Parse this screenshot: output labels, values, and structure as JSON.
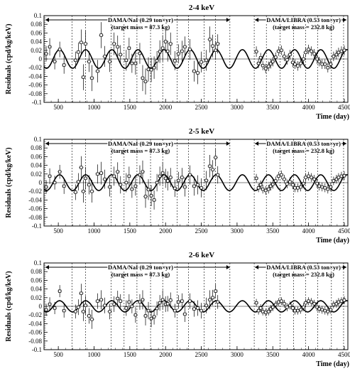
{
  "figure_title": "",
  "chart_data": [
    {
      "type": "scatter",
      "title": "2-4 keV",
      "xlabel": "Time (day)",
      "ylabel": "Residuals (cpd/kg/keV)",
      "xlim": [
        300,
        4550
      ],
      "ylim": [
        -0.1,
        0.1
      ],
      "xticks": [
        500,
        1000,
        1500,
        2000,
        2500,
        3000,
        3500,
        4000,
        4500
      ],
      "xtick_labels": [
        "500",
        "1000",
        "1500",
        "2000",
        "2500",
        "3000",
        "3500",
        "4000",
        "4500"
      ],
      "yticks": [
        -0.1,
        -0.08,
        -0.06,
        -0.04,
        -0.02,
        0,
        0.02,
        0.04,
        0.06,
        0.08,
        0.1
      ],
      "ytick_labels": [
        "-0.1",
        "-0.08",
        "-0.06",
        "-0.04",
        "-0.02",
        "0",
        "0.02",
        "0.04",
        "0.06",
        "0.08",
        "0.1"
      ],
      "grid": false,
      "annotations": {
        "nai_label": "DAMA/NaI (0.29 ton×yr)",
        "nai_mass": "(target mass = 87.3 kg)",
        "libra_label": "DAMA/LIBRA (0.53 ton×yr)",
        "libra_mass": "(target mass = 232.8 kg)"
      },
      "period_boundaries": [
        300,
        690,
        880,
        1240,
        1420,
        1600,
        1790,
        1960,
        2160,
        2320,
        2540,
        2700,
        2900,
        3240,
        3410,
        3600,
        3790,
        3960,
        4130,
        4320,
        4490
      ],
      "fit": {
        "amplitude": 0.0215,
        "period_days": 365.25,
        "phase_day": 152.5
      },
      "series": [
        {
          "x": [
            330,
            380,
            450,
            520,
            580,
            740,
            780,
            820,
            850,
            880,
            930,
            970,
            1050,
            1100,
            1150,
            1220,
            1280,
            1330,
            1370,
            1450,
            1490,
            1530,
            1580,
            1640,
            1680,
            1720,
            1760,
            1800,
            1840,
            1880,
            1920,
            1960,
            2000,
            2030,
            2070,
            2130,
            2180,
            2230,
            2270,
            2340,
            2400,
            2450,
            2500,
            2570,
            2620,
            2660,
            2700,
            2730,
            3270,
            3300,
            3330,
            3360,
            3400,
            3440,
            3470,
            3500,
            3540,
            3580,
            3620,
            3660,
            3700,
            3740,
            3780,
            3810,
            3850,
            3890,
            3930,
            3960,
            4000,
            4040,
            4080,
            4120,
            4150,
            4190,
            4230,
            4270,
            4310,
            4350,
            4390,
            4420,
            4460,
            4500
          ],
          "y": [
            0.012,
            0.028,
            -0.006,
            0.022,
            -0.014,
            -0.003,
            0.016,
            0.038,
            -0.042,
            0.035,
            -0.006,
            -0.044,
            -0.028,
            0.055,
            0.006,
            -0.006,
            0.035,
            0.028,
            0.01,
            -0.003,
            0.025,
            -0.01,
            -0.01,
            0.013,
            -0.044,
            -0.052,
            -0.024,
            -0.025,
            -0.02,
            -0.004,
            0.017,
            0.025,
            0.04,
            0.018,
            0.035,
            -0.004,
            0.012,
            0.018,
            0.028,
            0.022,
            -0.028,
            -0.032,
            -0.007,
            -0.003,
            0.045,
            0.03,
            0.02,
            0.035,
            0.017,
            -0.01,
            0.003,
            -0.015,
            -0.022,
            -0.017,
            -0.011,
            -0.006,
            0.004,
            0.018,
            0.02,
            0.006,
            -0.002,
            0.01,
            -0.008,
            -0.012,
            -0.016,
            -0.01,
            0.0,
            0.015,
            0.022,
            0.018,
            0.012,
            0.0,
            -0.006,
            -0.012,
            -0.012,
            -0.02,
            -0.012,
            0.006,
            0.01,
            0.015,
            0.018,
            0.02
          ],
          "err": [
            0.018,
            0.02,
            0.018,
            0.018,
            0.02,
            0.02,
            0.022,
            0.03,
            0.03,
            0.03,
            0.024,
            0.03,
            0.026,
            0.03,
            0.024,
            0.024,
            0.026,
            0.026,
            0.022,
            0.024,
            0.024,
            0.022,
            0.026,
            0.024,
            0.03,
            0.03,
            0.028,
            0.028,
            0.026,
            0.022,
            0.026,
            0.03,
            0.026,
            0.024,
            0.026,
            0.022,
            0.022,
            0.024,
            0.024,
            0.024,
            0.024,
            0.026,
            0.024,
            0.024,
            0.03,
            0.026,
            0.022,
            0.022,
            0.012,
            0.011,
            0.011,
            0.011,
            0.011,
            0.011,
            0.011,
            0.011,
            0.011,
            0.011,
            0.011,
            0.011,
            0.011,
            0.011,
            0.011,
            0.011,
            0.011,
            0.011,
            0.011,
            0.011,
            0.011,
            0.011,
            0.011,
            0.011,
            0.011,
            0.011,
            0.011,
            0.011,
            0.011,
            0.011,
            0.011,
            0.011,
            0.011,
            0.011
          ]
        }
      ]
    },
    {
      "type": "scatter",
      "title": "2-5 keV",
      "xlabel": "Time (day)",
      "ylabel": "Residuals (cpd/kg/keV)",
      "xlim": [
        300,
        4550
      ],
      "ylim": [
        -0.1,
        0.1
      ],
      "xticks": [
        500,
        1000,
        1500,
        2000,
        2500,
        3000,
        3500,
        4000,
        4500
      ],
      "xtick_labels": [
        "500",
        "1000",
        "1500",
        "2000",
        "2500",
        "3000",
        "3500",
        "4000",
        "4500"
      ],
      "yticks": [
        -0.1,
        -0.08,
        -0.06,
        -0.04,
        -0.02,
        0,
        0.02,
        0.04,
        0.06,
        0.08,
        0.1
      ],
      "ytick_labels": [
        "-0.1",
        "-0.08",
        "-0.06",
        "-0.04",
        "-0.02",
        "0",
        "0.02",
        "0.04",
        "0.06",
        "0.08",
        "0.1"
      ],
      "grid": false,
      "annotations": {
        "nai_label": "DAMA/NaI (0.29 ton×yr)",
        "nai_mass": "(target mass = 87.3 kg)",
        "libra_label": "DAMA/LIBRA (0.53 ton×yr)",
        "libra_mass": "(target mass = 232.8 kg)"
      },
      "period_boundaries": [
        300,
        690,
        880,
        1240,
        1420,
        1600,
        1790,
        1960,
        2160,
        2320,
        2540,
        2700,
        2900,
        3240,
        3410,
        3600,
        3790,
        3960,
        4130,
        4320,
        4490
      ],
      "fit": {
        "amplitude": 0.0182,
        "period_days": 365.25,
        "phase_day": 152.5
      },
      "series": [
        {
          "x": [
            330,
            380,
            450,
            520,
            580,
            740,
            780,
            820,
            850,
            880,
            930,
            970,
            1050,
            1100,
            1150,
            1220,
            1280,
            1330,
            1370,
            1450,
            1490,
            1530,
            1580,
            1640,
            1680,
            1720,
            1760,
            1800,
            1840,
            1880,
            1920,
            1960,
            2000,
            2030,
            2070,
            2130,
            2180,
            2230,
            2270,
            2340,
            2400,
            2450,
            2500,
            2570,
            2620,
            2660,
            2700,
            2730,
            3270,
            3300,
            3330,
            3360,
            3400,
            3440,
            3470,
            3500,
            3540,
            3580,
            3620,
            3660,
            3700,
            3740,
            3780,
            3810,
            3850,
            3890,
            3930,
            3960,
            4000,
            4040,
            4080,
            4120,
            4150,
            4190,
            4230,
            4270,
            4310,
            4350,
            4390,
            4420,
            4460,
            4500
          ],
          "y": [
            -0.01,
            0.015,
            0.0,
            0.025,
            -0.008,
            -0.022,
            0.002,
            0.035,
            -0.02,
            0.01,
            -0.005,
            -0.02,
            0.02,
            0.022,
            0.008,
            -0.01,
            0.015,
            0.025,
            -0.005,
            0.0,
            0.015,
            -0.015,
            -0.008,
            0.018,
            0.025,
            -0.032,
            -0.016,
            -0.03,
            -0.04,
            0.0,
            0.015,
            0.022,
            0.01,
            0.004,
            0.012,
            -0.013,
            0.005,
            0.012,
            -0.01,
            0.018,
            -0.008,
            -0.005,
            -0.012,
            0.005,
            0.038,
            0.03,
            0.058,
            0.018,
            0.01,
            -0.012,
            -0.005,
            -0.015,
            -0.018,
            -0.015,
            -0.008,
            -0.004,
            0.004,
            0.015,
            0.018,
            0.008,
            -0.003,
            0.002,
            -0.005,
            -0.012,
            -0.012,
            -0.01,
            -0.002,
            0.012,
            0.015,
            0.012,
            0.008,
            -0.002,
            -0.008,
            -0.01,
            -0.012,
            -0.015,
            -0.01,
            0.004,
            0.008,
            0.012,
            0.015,
            0.016
          ],
          "err": [
            0.016,
            0.018,
            0.016,
            0.016,
            0.018,
            0.018,
            0.02,
            0.026,
            0.026,
            0.026,
            0.022,
            0.026,
            0.022,
            0.026,
            0.022,
            0.022,
            0.022,
            0.022,
            0.02,
            0.022,
            0.022,
            0.02,
            0.022,
            0.022,
            0.026,
            0.026,
            0.024,
            0.024,
            0.022,
            0.02,
            0.022,
            0.026,
            0.022,
            0.022,
            0.022,
            0.02,
            0.02,
            0.022,
            0.022,
            0.022,
            0.022,
            0.022,
            0.022,
            0.022,
            0.026,
            0.022,
            0.02,
            0.02,
            0.01,
            0.01,
            0.01,
            0.01,
            0.01,
            0.01,
            0.01,
            0.01,
            0.01,
            0.01,
            0.01,
            0.01,
            0.01,
            0.01,
            0.01,
            0.01,
            0.01,
            0.01,
            0.01,
            0.01,
            0.01,
            0.01,
            0.01,
            0.01,
            0.01,
            0.01,
            0.01,
            0.01,
            0.01,
            0.01,
            0.01,
            0.01,
            0.01,
            0.01
          ]
        }
      ]
    },
    {
      "type": "scatter",
      "title": "2-6 keV",
      "xlabel": "Time (day)",
      "ylabel": "Residuals (cpd/kg/keV)",
      "xlim": [
        300,
        4550
      ],
      "ylim": [
        -0.1,
        0.1
      ],
      "xticks": [
        500,
        1000,
        1500,
        2000,
        2500,
        3000,
        3500,
        4000,
        4500
      ],
      "xtick_labels": [
        "500",
        "1000",
        "1500",
        "2000",
        "2500",
        "3000",
        "3500",
        "4000",
        "4500"
      ],
      "yticks": [
        -0.1,
        -0.08,
        -0.06,
        -0.04,
        -0.02,
        0,
        0.02,
        0.04,
        0.06,
        0.08,
        0.1
      ],
      "ytick_labels": [
        "-0.1",
        "-0.08",
        "-0.06",
        "-0.04",
        "-0.02",
        "0",
        "0.02",
        "0.04",
        "0.06",
        "0.08",
        "0.1"
      ],
      "grid": false,
      "annotations": {
        "nai_label": "DAMA/NaI (0.29 ton×yr)",
        "nai_mass": "(target mass = 87.3 kg)",
        "libra_label": "DAMA/LIBRA (0.53 ton×yr)",
        "libra_mass": "(target mass = 232.8 kg)"
      },
      "period_boundaries": [
        300,
        690,
        880,
        1240,
        1420,
        1600,
        1790,
        1960,
        2160,
        2320,
        2540,
        2700,
        2900,
        3240,
        3410,
        3600,
        3790,
        3960,
        4130,
        4320,
        4490
      ],
      "fit": {
        "amplitude": 0.0129,
        "period_days": 365.25,
        "phase_day": 152.5
      },
      "series": [
        {
          "x": [
            330,
            380,
            450,
            520,
            580,
            740,
            780,
            820,
            850,
            880,
            930,
            970,
            1050,
            1100,
            1150,
            1220,
            1280,
            1330,
            1370,
            1450,
            1490,
            1530,
            1580,
            1640,
            1680,
            1720,
            1760,
            1800,
            1840,
            1880,
            1920,
            1960,
            2000,
            2030,
            2070,
            2130,
            2180,
            2230,
            2270,
            2340,
            2400,
            2450,
            2500,
            2570,
            2620,
            2660,
            2700,
            2730,
            3270,
            3300,
            3330,
            3360,
            3400,
            3440,
            3470,
            3500,
            3540,
            3580,
            3620,
            3660,
            3700,
            3740,
            3780,
            3810,
            3850,
            3890,
            3930,
            3960,
            4000,
            4040,
            4080,
            4120,
            4150,
            4190,
            4230,
            4270,
            4310,
            4350,
            4390,
            4420,
            4460,
            4500
          ],
          "y": [
            -0.008,
            0.005,
            -0.004,
            0.035,
            -0.01,
            -0.012,
            -0.002,
            0.03,
            -0.012,
            0.002,
            -0.022,
            -0.03,
            0.012,
            0.015,
            0.002,
            -0.012,
            0.005,
            0.018,
            0.012,
            -0.004,
            0.01,
            0.0,
            -0.02,
            0.01,
            0.015,
            -0.022,
            -0.01,
            -0.028,
            -0.024,
            -0.005,
            0.008,
            0.015,
            0.005,
            0.006,
            0.014,
            -0.01,
            0.01,
            0.012,
            -0.018,
            0.012,
            -0.006,
            -0.004,
            -0.01,
            0.002,
            0.015,
            0.02,
            0.035,
            0.01,
            0.008,
            -0.01,
            -0.004,
            -0.012,
            -0.014,
            -0.012,
            -0.006,
            -0.002,
            0.004,
            0.01,
            0.012,
            0.006,
            -0.002,
            0.002,
            -0.004,
            -0.01,
            -0.01,
            -0.008,
            -0.002,
            0.008,
            0.012,
            0.01,
            0.006,
            -0.002,
            -0.006,
            -0.008,
            -0.01,
            -0.012,
            -0.008,
            0.004,
            0.006,
            0.01,
            0.012,
            0.014
          ],
          "err": [
            0.014,
            0.016,
            0.014,
            0.014,
            0.016,
            0.016,
            0.018,
            0.022,
            0.022,
            0.022,
            0.018,
            0.022,
            0.018,
            0.022,
            0.018,
            0.018,
            0.018,
            0.018,
            0.016,
            0.018,
            0.018,
            0.016,
            0.018,
            0.018,
            0.022,
            0.022,
            0.02,
            0.02,
            0.018,
            0.016,
            0.018,
            0.022,
            0.018,
            0.018,
            0.018,
            0.016,
            0.016,
            0.018,
            0.018,
            0.018,
            0.018,
            0.018,
            0.018,
            0.018,
            0.022,
            0.018,
            0.016,
            0.016,
            0.009,
            0.009,
            0.009,
            0.009,
            0.009,
            0.009,
            0.009,
            0.009,
            0.009,
            0.009,
            0.009,
            0.009,
            0.009,
            0.009,
            0.009,
            0.009,
            0.009,
            0.009,
            0.009,
            0.009,
            0.009,
            0.009,
            0.009,
            0.009,
            0.009,
            0.009,
            0.009,
            0.009,
            0.009,
            0.009,
            0.009,
            0.009,
            0.009,
            0.009
          ]
        }
      ]
    }
  ]
}
